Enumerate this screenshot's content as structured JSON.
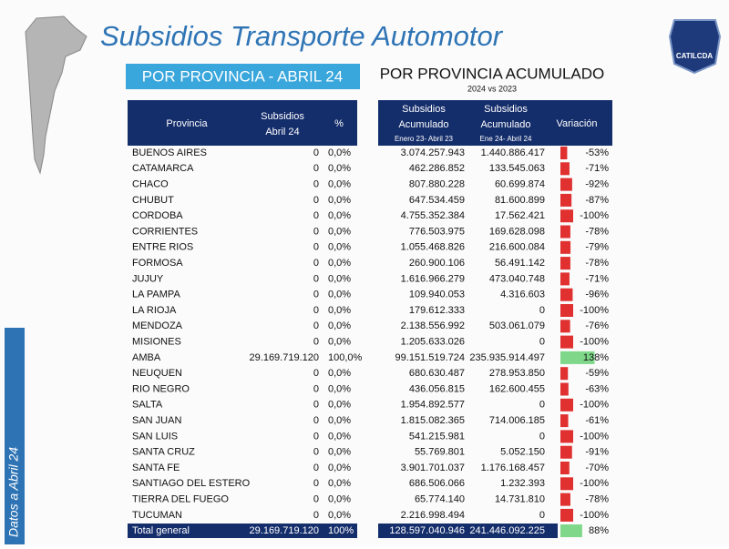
{
  "header": {
    "title": "Subsidios Transporte Automotor",
    "left_banner": "POR PROVINCIA - ABRIL 24",
    "right_title": "POR PROVINCIA ACUMULADO",
    "right_subtitle": "2024 vs 2023",
    "logo": "CATILCDA",
    "side_label": "Datos a Abril 24"
  },
  "table": {
    "columns": {
      "provincia": "Provincia",
      "subsidios": [
        "Subsidios",
        "Abril 24"
      ],
      "pct": "%",
      "acum23": [
        "Subsidios",
        "Acumulado",
        "Enero 23- Abril 23"
      ],
      "acum24": [
        "Subsidios",
        "Acumulado",
        "Ene 24- Abril 24"
      ],
      "variacion": "Variación"
    },
    "rows": [
      [
        "BUENOS AIRES",
        "0",
        "0,0%",
        "3.074.257.943",
        "1.440.886.417",
        {
          "value": -53,
          "label": "-53%"
        }
      ],
      [
        "CATAMARCA",
        "0",
        "0,0%",
        "462.286.852",
        "133.545.063",
        {
          "value": -71,
          "label": "-71%"
        }
      ],
      [
        "CHACO",
        "0",
        "0,0%",
        "807.880.228",
        "60.699.874",
        {
          "value": -92,
          "label": "-92%"
        }
      ],
      [
        "CHUBUT",
        "0",
        "0,0%",
        "647.534.459",
        "81.600.899",
        {
          "value": -87,
          "label": "-87%"
        }
      ],
      [
        "CORDOBA",
        "0",
        "0,0%",
        "4.755.352.384",
        "17.562.421",
        {
          "value": -100,
          "label": "-100%"
        }
      ],
      [
        "CORRIENTES",
        "0",
        "0,0%",
        "776.503.975",
        "169.628.098",
        {
          "value": -78,
          "label": "-78%"
        }
      ],
      [
        "ENTRE RIOS",
        "0",
        "0,0%",
        "1.055.468.826",
        "216.600.084",
        {
          "value": -79,
          "label": "-79%"
        }
      ],
      [
        "FORMOSA",
        "0",
        "0,0%",
        "260.900.106",
        "56.491.142",
        {
          "value": -78,
          "label": "-78%"
        }
      ],
      [
        "JUJUY",
        "0",
        "0,0%",
        "1.616.966.279",
        "473.040.748",
        {
          "value": -71,
          "label": "-71%"
        }
      ],
      [
        "LA PAMPA",
        "0",
        "0,0%",
        "109.940.053",
        "4.316.603",
        {
          "value": -96,
          "label": "-96%"
        }
      ],
      [
        "LA RIOJA",
        "0",
        "0,0%",
        "179.612.333",
        "0",
        {
          "value": -100,
          "label": "-100%"
        }
      ],
      [
        "MENDOZA",
        "0",
        "0,0%",
        "2.138.556.992",
        "503.061.079",
        {
          "value": -76,
          "label": "-76%"
        }
      ],
      [
        "MISIONES",
        "0",
        "0,0%",
        "1.205.633.026",
        "0",
        {
          "value": -100,
          "label": "-100%"
        }
      ],
      [
        "AMBA",
        "29.169.719.120",
        "100,0%",
        "99.151.519.724",
        "235.935.914.497",
        {
          "value": 138,
          "label": "138%"
        }
      ],
      [
        "NEUQUEN",
        "0",
        "0,0%",
        "680.630.487",
        "278.953.850",
        {
          "value": -59,
          "label": "-59%"
        }
      ],
      [
        "RIO NEGRO",
        "0",
        "0,0%",
        "436.056.815",
        "162.600.455",
        {
          "value": -63,
          "label": "-63%"
        }
      ],
      [
        "SALTA",
        "0",
        "0,0%",
        "1.954.892.577",
        "0",
        {
          "value": -100,
          "label": "-100%"
        }
      ],
      [
        "SAN JUAN",
        "0",
        "0,0%",
        "1.815.082.365",
        "714.006.185",
        {
          "value": -61,
          "label": "-61%"
        }
      ],
      [
        "SAN LUIS",
        "0",
        "0,0%",
        "541.215.981",
        "0",
        {
          "value": -100,
          "label": "-100%"
        }
      ],
      [
        "SANTA CRUZ",
        "0",
        "0,0%",
        "55.769.801",
        "5.052.150",
        {
          "value": -91,
          "label": "-91%"
        }
      ],
      [
        "SANTA FE",
        "0",
        "0,0%",
        "3.901.701.037",
        "1.176.168.457",
        {
          "value": -70,
          "label": "-70%"
        }
      ],
      [
        "SANTIAGO DEL ESTERO",
        "0",
        "0,0%",
        "686.506.066",
        "1.232.393",
        {
          "value": -100,
          "label": "-100%"
        }
      ],
      [
        "TIERRA DEL FUEGO",
        "0",
        "0,0%",
        "65.774.140",
        "14.731.810",
        {
          "value": -78,
          "label": "-78%"
        }
      ],
      [
        "TUCUMAN",
        "0",
        "0,0%",
        "2.216.998.494",
        "0",
        {
          "value": -100,
          "label": "-100%"
        }
      ]
    ],
    "total": [
      "Total general",
      "29.169.719.120",
      "100%",
      "128.597.040.946",
      "241.446.092.225",
      {
        "value": 88,
        "label": "88%"
      }
    ]
  }
}
